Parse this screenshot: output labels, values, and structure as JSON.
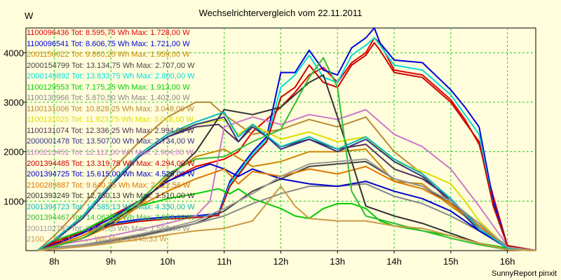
{
  "chart_data": {
    "type": "line",
    "title": "Wechselrichtervergleich vom 22.11.2011",
    "ylabel": "W",
    "xlabel": "",
    "footer": "SunnyReport pinxit",
    "xlim": [
      7.5,
      16.5
    ],
    "ylim": [
      0,
      4500
    ],
    "xticks": [
      {
        "value": 8,
        "label": "8h"
      },
      {
        "value": 9,
        "label": "9h"
      },
      {
        "value": 10,
        "label": "10h"
      },
      {
        "value": 11,
        "label": "11h"
      },
      {
        "value": 12,
        "label": "12h"
      },
      {
        "value": 13,
        "label": "13h"
      },
      {
        "value": 14,
        "label": "14h"
      },
      {
        "value": 15,
        "label": "15h"
      },
      {
        "value": 16,
        "label": "16h"
      }
    ],
    "yticks": [
      1000,
      2000,
      3000,
      4000
    ],
    "grid": true,
    "legend_position": "top-left",
    "series": [
      {
        "name": "1100096436 Tot: 8.595,75 Wh Max: 1.728,00 W",
        "color": "#e00000",
        "x": [
          7.7,
          8,
          8.5,
          9,
          9.5,
          10,
          10.5,
          11,
          11.25,
          11.5,
          12,
          12.25,
          12.5,
          12.75,
          13,
          13.25,
          13.5,
          13.65,
          13.75,
          14,
          14.5,
          15,
          15.25,
          15.5,
          15.75,
          16,
          16.5
        ],
        "y": [
          0,
          150,
          350,
          700,
          1000,
          1400,
          1700,
          1850,
          2000,
          2400,
          2900,
          3200,
          3550,
          3700,
          3400,
          3800,
          4000,
          4300,
          4200,
          3650,
          3550,
          3050,
          2650,
          2150,
          1100,
          100,
          0
        ]
      },
      {
        "name": "1100096541 Tot: 8.606,75 Wh Max: 1.721,00 W",
        "color": "#0000dd",
        "x": [
          7.7,
          8,
          8.5,
          9,
          9.5,
          10,
          10.5,
          10.9,
          11.1,
          11.2,
          11.5,
          11.75,
          12,
          12.25,
          12.5,
          12.75,
          13,
          13.25,
          13.5,
          13.65,
          13.75,
          14,
          14.5,
          15,
          15.25,
          15.5,
          15.75,
          16,
          16.5
        ],
        "y": [
          0,
          200,
          400,
          550,
          630,
          680,
          700,
          750,
          1400,
          1550,
          2000,
          2300,
          3600,
          3600,
          4050,
          3650,
          3550,
          4100,
          4300,
          4500,
          4200,
          3850,
          3800,
          3250,
          2900,
          2500,
          1000,
          100,
          0
        ]
      },
      {
        "name": "2001150622 Tot: 9.860,25 Wh Max: 1.959,00 W",
        "color": "#cc8800",
        "x": [
          7.7,
          8,
          8.5,
          9,
          9.5,
          10,
          10.5,
          11,
          11.5,
          12,
          12.5,
          13,
          13.5,
          14,
          14.5,
          15,
          15.5,
          16,
          16.5
        ],
        "y": [
          0,
          100,
          250,
          500,
          900,
          1500,
          1900,
          2050,
          1700,
          1800,
          2000,
          2000,
          2050,
          1400,
          1350,
          900,
          500,
          80,
          0
        ]
      },
      {
        "name": "2000154799 Tot: 13.134,75 Wh Max: 2.707,00 W",
        "color": "#444444",
        "x": [
          7.7,
          8,
          8.5,
          9,
          9.5,
          10,
          10.5,
          11,
          11.5,
          12,
          12.5,
          13,
          13.5,
          14,
          14.5,
          15,
          15.5,
          16,
          16.5
        ],
        "y": [
          0,
          60,
          120,
          200,
          300,
          420,
          550,
          800,
          1200,
          1450,
          1700,
          1750,
          1800,
          1450,
          1300,
          950,
          550,
          80,
          0
        ]
      },
      {
        "name": "2000149892 Tot: 13.833,75 Wh Max: 2.800,00 W",
        "color": "#00dddd",
        "x": [
          7.7,
          8,
          8.5,
          9,
          9.5,
          10,
          10.5,
          10.9,
          11.1,
          11.2,
          11.5,
          11.75,
          12,
          12.25,
          12.5,
          12.75,
          13,
          13.25,
          13.5,
          13.65,
          13.75,
          14,
          14.5,
          15,
          15.25,
          15.5,
          15.75,
          16,
          16.5
        ],
        "y": [
          0,
          180,
          380,
          520,
          600,
          650,
          680,
          720,
          1350,
          1500,
          1950,
          2250,
          3300,
          3550,
          3950,
          3500,
          3400,
          3950,
          4150,
          4300,
          4150,
          3750,
          3650,
          3150,
          2750,
          2350,
          900,
          100,
          0
        ]
      },
      {
        "name": "1100129553 Tot: 7.175,25 Wh Max: 1.913,00 W",
        "color": "#00cc00",
        "x": [
          7.7,
          8,
          8.5,
          9,
          9.5,
          10,
          10.5,
          10.9,
          11.1,
          11.25,
          11.5,
          12,
          12.25,
          12.5,
          12.75,
          13,
          13.25,
          13.5,
          13.75,
          14,
          14.5,
          15,
          15.5,
          16,
          16.5
        ],
        "y": [
          0,
          200,
          400,
          700,
          900,
          1050,
          1150,
          1250,
          1150,
          1250,
          1050,
          850,
          700,
          650,
          850,
          950,
          950,
          850,
          600,
          500,
          400,
          300,
          150,
          50,
          0
        ]
      },
      {
        "name": "1100130966 Tot: 5.870,50 Wh Max: 1.402,00 W",
        "color": "#888888",
        "x": [
          7.7,
          8,
          8.5,
          9,
          9.5,
          10,
          10.5,
          11,
          11.5,
          12,
          12.5,
          13,
          13.5,
          14,
          14.5,
          15,
          15.5,
          16,
          16.5
        ],
        "y": [
          0,
          40,
          100,
          180,
          280,
          400,
          550,
          700,
          950,
          1150,
          1300,
          1300,
          1350,
          1100,
          950,
          700,
          400,
          60,
          0
        ]
      },
      {
        "name": "1100131006 Tot: 10.828,25 Wh Max: 3.048,00 W",
        "color": "#bb8833",
        "x": [
          7.7,
          8,
          8.5,
          9,
          9.5,
          10,
          10.5,
          10.75,
          11,
          11.5,
          12,
          12.5,
          13,
          13.25,
          13.5,
          14,
          14.5,
          15,
          15.5,
          16,
          16.5
        ],
        "y": [
          0,
          300,
          900,
          1600,
          2200,
          2700,
          3000,
          3000,
          2750,
          2350,
          2450,
          2650,
          2500,
          2600,
          2700,
          2000,
          1550,
          950,
          450,
          60,
          0
        ]
      },
      {
        "name": "1100131025 Tot: 11.923,75 Wh Max: 3.048,00 W",
        "color": "#dddd00",
        "x": [
          7.7,
          8,
          8.5,
          9,
          9.5,
          10,
          10.5,
          11,
          11.25,
          11.5,
          12,
          12.5,
          13,
          13.5,
          14,
          14.5,
          15,
          15.25,
          15.5,
          16,
          16.5
        ],
        "y": [
          0,
          220,
          700,
          1350,
          1950,
          2350,
          2550,
          2650,
          2350,
          2550,
          2250,
          2400,
          2200,
          2300,
          1800,
          1600,
          1350,
          1000,
          600,
          60,
          0
        ]
      },
      {
        "name": "1100131074 Tot: 12.336,25 Wh Max: 2.994,00 W",
        "color": "#553355",
        "x": [
          7.7,
          8,
          8.5,
          9,
          9.5,
          10,
          10.5,
          10.9,
          11.25,
          11.5,
          12,
          12.5,
          13,
          13.5,
          14,
          14.5,
          15,
          15.5,
          16,
          16.5
        ],
        "y": [
          0,
          200,
          650,
          1300,
          1900,
          2300,
          2500,
          2550,
          2200,
          2500,
          2100,
          2250,
          2050,
          2150,
          1650,
          1450,
          1050,
          450,
          50,
          0
        ]
      },
      {
        "name": "2000001478 Tot: 13.507,00 Wh Max: 2.734,00 W",
        "color": "#333388",
        "x": [
          7.7,
          8,
          8.5,
          9,
          9.5,
          10,
          10.5,
          11,
          11.25,
          11.5,
          12,
          12.5,
          13,
          13.5,
          14,
          14.5,
          15,
          15.5,
          16,
          16.5
        ],
        "y": [
          0,
          200,
          650,
          1300,
          1900,
          2300,
          2550,
          2700,
          2200,
          2550,
          2050,
          2250,
          2000,
          2250,
          1800,
          1500,
          1000,
          400,
          50,
          0
        ]
      },
      {
        "name": "1100213451 Tot: 12.112,00 Wh Max: 2.904,00 W",
        "color": "#cc77cc",
        "x": [
          7.7,
          8,
          8.5,
          9,
          9.5,
          10,
          10.5,
          10.75,
          11,
          11.5,
          12,
          12.5,
          13,
          13.5,
          14,
          14.5,
          15,
          15.5,
          16,
          16.5
        ],
        "y": [
          0,
          100,
          200,
          300,
          420,
          550,
          700,
          1000,
          2500,
          2700,
          2550,
          2750,
          2650,
          2850,
          2350,
          2100,
          1650,
          900,
          100,
          0
        ]
      },
      {
        "name": "2001394485 Tot: 13.319,75 Wh Max: 4.294,00 W",
        "color": "#cc0000",
        "x": [
          7.7,
          8,
          8.5,
          9,
          9.5,
          10,
          10.5,
          10.9,
          11.1,
          11.2,
          11.5,
          11.75,
          12,
          12.25,
          12.5,
          12.75,
          13,
          13.25,
          13.5,
          13.65,
          13.75,
          14,
          14.5,
          15,
          15.25,
          15.5,
          15.75,
          16,
          16.5
        ],
        "y": [
          0,
          170,
          370,
          510,
          590,
          640,
          670,
          710,
          1300,
          1450,
          1900,
          2200,
          3100,
          3300,
          3750,
          3400,
          3300,
          3750,
          3950,
          4200,
          4050,
          3600,
          3500,
          3000,
          2600,
          2200,
          900,
          100,
          0
        ]
      },
      {
        "name": "2001394725 Tot: 15.615,00 Wh Max: 4.526,00 W",
        "color": "#0000cc",
        "x": [
          7.7,
          8,
          8.5,
          9,
          9.5,
          10,
          10.5,
          10.75,
          11,
          11.25,
          11.5,
          12,
          12.5,
          13,
          13.5,
          14,
          14.5,
          15,
          15.5,
          16,
          16.5
        ],
        "y": [
          0,
          120,
          350,
          650,
          1000,
          1400,
          1650,
          1750,
          1650,
          1500,
          1650,
          1450,
          1350,
          1300,
          1400,
          1200,
          1050,
          800,
          400,
          60,
          0
        ]
      },
      {
        "name": "2100289887 Tot: 9.640,25 Wh Max: 2.222,56 W",
        "color": "#dd7700",
        "x": [
          7.7,
          8,
          8.5,
          9,
          9.5,
          10,
          10.5,
          11,
          11.25,
          11.5,
          12,
          12.5,
          13,
          13.5,
          14,
          14.5,
          15,
          15.5,
          16,
          16.5
        ],
        "y": [
          0,
          100,
          300,
          600,
          900,
          1200,
          1450,
          1650,
          1350,
          1600,
          1500,
          1650,
          1550,
          1700,
          1400,
          1250,
          950,
          500,
          60,
          0
        ]
      },
      {
        "name": "2001393249 Tot: 12.730,13 Wh Max: 3.510,00 W",
        "color": "#333333",
        "x": [
          7.7,
          8,
          8.5,
          9,
          9.5,
          10,
          10.5,
          11,
          11.5,
          12,
          12.5,
          12.75,
          13,
          13.5,
          14,
          14.5,
          15,
          15.5,
          16,
          16.5
        ],
        "y": [
          0,
          80,
          250,
          550,
          950,
          1450,
          2000,
          2850,
          2750,
          2900,
          3400,
          3550,
          2700,
          900,
          700,
          550,
          350,
          150,
          20,
          0
        ]
      },
      {
        "name": "2001394723 Tot: 14.585,13 Wh Max: 4.330,00 W",
        "color": "#00bbbb",
        "x": [
          7.7,
          8,
          8.5,
          9,
          9.5,
          10,
          10.5,
          11,
          11.25,
          11.5,
          12,
          12.5,
          13,
          13.5,
          14,
          14.5,
          15,
          15.5,
          16,
          16.5
        ],
        "y": [
          0,
          220,
          700,
          1350,
          1950,
          2350,
          2600,
          2800,
          2300,
          2550,
          2100,
          2300,
          2050,
          2300,
          1850,
          1550,
          1050,
          450,
          50,
          0
        ]
      },
      {
        "name": "2001394467 Tot: 14.063,00 Wh Max: 3.963,00 W",
        "color": "#33bb33",
        "x": [
          7.7,
          8,
          8.5,
          9,
          9.5,
          10,
          10.5,
          11,
          11.5,
          12,
          12.5,
          12.75,
          13,
          13.25,
          13.5,
          14,
          14.5,
          15,
          15.5,
          16,
          16.5
        ],
        "y": [
          0,
          80,
          250,
          600,
          1000,
          1550,
          1850,
          1900,
          2200,
          2450,
          3500,
          3900,
          3300,
          1200,
          700,
          550,
          400,
          250,
          120,
          20,
          0
        ]
      },
      {
        "name": "2001102792 Tot: 6.864,75 Wh Max: 1.550,00 W",
        "color": "#999999",
        "x": [
          7.7,
          8,
          8.5,
          9,
          9.5,
          10,
          10.5,
          11,
          11.5,
          12,
          12.5,
          13,
          13.5,
          14,
          14.5,
          15,
          15.5,
          16,
          16.5
        ],
        "y": [
          0,
          50,
          120,
          220,
          330,
          450,
          600,
          850,
          1150,
          1500,
          1750,
          1800,
          1850,
          1450,
          1300,
          1000,
          550,
          70,
          0
        ]
      },
      {
        "name": "2100... Tot: 10.0..,.. Wh Max: 2.645,33 W",
        "color": "#cc9944",
        "x": [
          7.7,
          8,
          8.5,
          9,
          9.5,
          10,
          10.5,
          11,
          11.5,
          12,
          12.25,
          12.5,
          13,
          13.5,
          14,
          14.5,
          15,
          15.5,
          16,
          16.5
        ],
        "y": [
          0,
          30,
          80,
          150,
          230,
          320,
          400,
          450,
          600,
          1300,
          900,
          650,
          600,
          600,
          500,
          450,
          300,
          150,
          20,
          0
        ]
      }
    ]
  }
}
